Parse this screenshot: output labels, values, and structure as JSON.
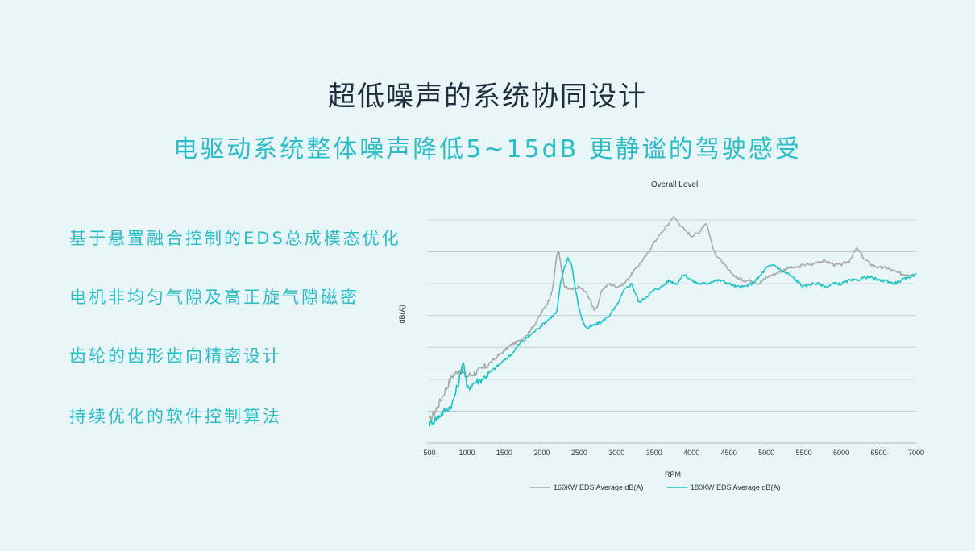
{
  "title": "超低噪声的系统协同设计",
  "subtitle": "电驱动系统整体噪声降低5~15dB  更静谧的驾驶感受",
  "points": [
    "基于悬置融合控制的EDS总成模态优化",
    "电机非均匀气隙及高正旋气隙磁密",
    "齿轮的齿形齿向精密设计",
    "持续优化的软件控制算法"
  ],
  "colors": {
    "background": "#e9f6f8",
    "title": "#1f2d3d",
    "accent": "#2bbcc6",
    "series_gray": "#a8aaaa",
    "series_teal": "#1fc3c3",
    "grid": "#bcc3c6"
  },
  "chart_data": {
    "type": "line",
    "title": "Overall Level",
    "xlabel": "RPM",
    "ylabel": "dB(A)",
    "xlim": [
      500,
      7000
    ],
    "x_ticks": [
      500,
      1000,
      1500,
      2000,
      2500,
      3000,
      3500,
      4000,
      4500,
      5000,
      5500,
      6000,
      6500,
      7000
    ],
    "ylim": [
      0,
      70
    ],
    "y_gridlines": [
      0,
      10,
      20,
      30,
      40,
      50,
      60,
      70
    ],
    "y_tick_labels_shown": false,
    "grid": "horizontal",
    "legend_position": "bottom-center",
    "series": [
      {
        "name": "160KW EDS Average dB(A)",
        "color": "#a8aaaa",
        "x": [
          500,
          600,
          700,
          800,
          900,
          1000,
          1100,
          1200,
          1300,
          1400,
          1500,
          1600,
          1700,
          1800,
          1900,
          2000,
          2100,
          2150,
          2200,
          2230,
          2260,
          2300,
          2400,
          2500,
          2600,
          2700,
          2750,
          2800,
          2900,
          3000,
          3100,
          3200,
          3300,
          3400,
          3500,
          3600,
          3700,
          3750,
          3800,
          3900,
          4000,
          4100,
          4150,
          4200,
          4300,
          4400,
          4500,
          4600,
          4700,
          4800,
          4900,
          5000,
          5100,
          5200,
          5300,
          5400,
          5500,
          5600,
          5700,
          5800,
          5900,
          6000,
          6100,
          6150,
          6200,
          6250,
          6300,
          6400,
          6500,
          6600,
          6700,
          6800,
          6900,
          7000
        ],
        "y": [
          7,
          11,
          16,
          21,
          23,
          21,
          22,
          23,
          25,
          27,
          29,
          31,
          32,
          34,
          37,
          41,
          45,
          49,
          59,
          60,
          55,
          49,
          48,
          49,
          47,
          42,
          43,
          48,
          50,
          49,
          50,
          53,
          56,
          59,
          63,
          66,
          69,
          71,
          70,
          67,
          65,
          66,
          68,
          69,
          60,
          57,
          54,
          52,
          51,
          51,
          50,
          52,
          53,
          54,
          55,
          55,
          56,
          56,
          57,
          57,
          56,
          56,
          57,
          59,
          61,
          60,
          58,
          56,
          55,
          55,
          54,
          53,
          53,
          53
        ]
      },
      {
        "name": "180KW EDS Average dB(A)",
        "color": "#1fc3c3",
        "x": [
          500,
          600,
          700,
          800,
          900,
          950,
          1000,
          1050,
          1100,
          1200,
          1300,
          1400,
          1500,
          1600,
          1700,
          1800,
          1900,
          2000,
          2100,
          2200,
          2250,
          2300,
          2350,
          2400,
          2450,
          2500,
          2550,
          2600,
          2700,
          2800,
          2900,
          3000,
          3100,
          3200,
          3300,
          3400,
          3500,
          3600,
          3700,
          3800,
          3900,
          4000,
          4100,
          4200,
          4300,
          4400,
          4500,
          4600,
          4700,
          4800,
          4900,
          5000,
          5100,
          5200,
          5300,
          5400,
          5500,
          5600,
          5700,
          5800,
          5900,
          6000,
          6100,
          6200,
          6300,
          6400,
          6500,
          6600,
          6700,
          6800,
          6900,
          7000
        ],
        "y": [
          6,
          8,
          10,
          12,
          20,
          26,
          17,
          18,
          19,
          20,
          22,
          24,
          26,
          28,
          31,
          33,
          35,
          37,
          39,
          41,
          50,
          55,
          58,
          56,
          48,
          42,
          38,
          36,
          37,
          38,
          40,
          43,
          48,
          50,
          44,
          46,
          48,
          49,
          51,
          50,
          53,
          51,
          50,
          50,
          51,
          51,
          50,
          49,
          49,
          50,
          52,
          55,
          56,
          54,
          53,
          51,
          49,
          50,
          50,
          49,
          50,
          50,
          51,
          51,
          52,
          52,
          51,
          51,
          50,
          51,
          52,
          53
        ]
      }
    ]
  }
}
